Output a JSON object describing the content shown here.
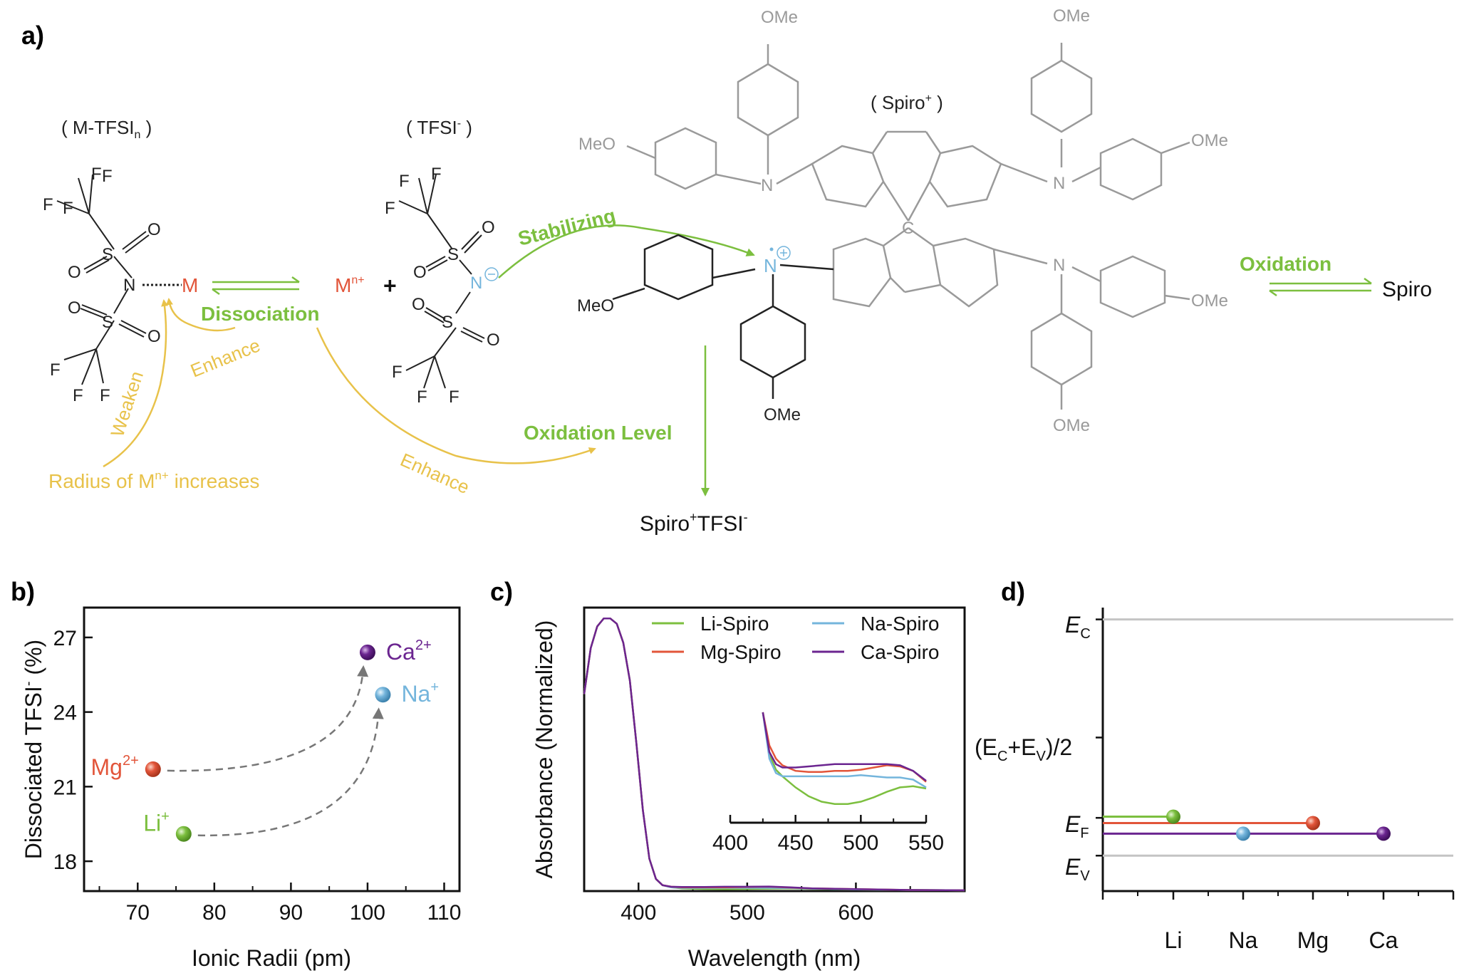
{
  "colors": {
    "green": "#7cbf3f",
    "yellow": "#e8c24a",
    "red": "#e2553a",
    "blue": "#74b5dc",
    "purple": "#6b2590",
    "grey": "#9a9a9a",
    "black": "#111111",
    "paleGrey": "#c9c9c9"
  },
  "panel_a": {
    "label": "a)",
    "m_tfsi_label": "( M-TFSI",
    "m_tfsi_sub": "n",
    "m_tfsi_close": " )",
    "tfsi_label": "( TFSI",
    "tfsi_sup": "-",
    "tfsi_close": " )",
    "spiro_plus_label": "( Spiro",
    "spiro_plus_sup": "+",
    "spiro_plus_close": " )",
    "metal": "M",
    "metal_ion": "M",
    "metal_ion_sup": "n+",
    "plus": "+",
    "dissociation": "Dissociation",
    "enhance": "Enhance",
    "weaken": "Weaken",
    "radius_text": "Radius of M",
    "radius_sup": "n+",
    "radius_tail": " increases",
    "stabilizing": "Stabilizing",
    "oxidation_level": "Oxidation Level",
    "enhance2": "Enhance",
    "oxidation": "Oxidation",
    "spiro": "Spiro",
    "product": "Spiro",
    "product_sup1": "+",
    "product_mid": "TFSI",
    "product_sup2": "-",
    "atoms": {
      "F": "F",
      "S": "S",
      "O": "O",
      "N": "N",
      "C": "C",
      "OMe": "OMe",
      "MeO": "MeO"
    }
  },
  "panel_b": {
    "label": "b)",
    "xlabel": "Ionic Radii (pm)",
    "ylabel_main": "Dissociated TFSI",
    "ylabel_sup": "-",
    "ylabel_tail": " (%)"
  },
  "panel_c": {
    "label": "c)",
    "xlabel": "Wavelength (nm)",
    "ylabel": "Absorbance (Normalized)"
  },
  "panel_d": {
    "label": "d)",
    "ec": "E",
    "ec_sub": "C",
    "mid": "(E",
    "mid_sub1": "C",
    "mid_plus": "+E",
    "mid_sub2": "V",
    "mid_tail": ")/2",
    "ef": "E",
    "ef_sub": "F",
    "ev": "E",
    "ev_sub": "V"
  },
  "chart_data": [
    {
      "type": "scatter",
      "title": "",
      "xlabel": "Ionic Radii (pm)",
      "ylabel": "Dissociated TFSI- (%)",
      "xlim": [
        63,
        112
      ],
      "ylim": [
        16.8,
        28.2
      ],
      "xticks": [
        70,
        80,
        90,
        100,
        110
      ],
      "yticks": [
        18,
        21,
        24,
        27
      ],
      "points": [
        {
          "name": "Li",
          "label": "Li",
          "sup": "+",
          "x": 76,
          "y": 19.1,
          "color": "#7cbf3f"
        },
        {
          "name": "Mg",
          "label": "Mg",
          "sup": "2+",
          "x": 72,
          "y": 21.7,
          "color": "#e2553a"
        },
        {
          "name": "Na",
          "label": "Na",
          "sup": "+",
          "x": 102,
          "y": 24.7,
          "color": "#74b5dc"
        },
        {
          "name": "Ca",
          "label": "Ca",
          "sup": "2+",
          "x": 100,
          "y": 26.4,
          "color": "#6b2590"
        }
      ],
      "arrows": [
        {
          "from": "Mg",
          "to": "Ca"
        },
        {
          "from": "Li",
          "to": "Na"
        }
      ]
    },
    {
      "type": "line",
      "title": "",
      "xlabel": "Wavelength (nm)",
      "ylabel": "Absorbance (Normalized)",
      "xlim": [
        350,
        700
      ],
      "ylim": [
        0,
        1.05
      ],
      "xticks": [
        400,
        500,
        600
      ],
      "legend_position": "top-right",
      "series": [
        {
          "name": "Li-Spiro",
          "color": "#7cbf3f",
          "x": [
            350,
            356,
            362,
            368,
            374,
            380,
            386,
            392,
            398,
            404,
            410,
            416,
            422,
            430,
            440,
            460,
            480,
            500,
            520,
            540,
            560,
            600,
            650,
            700
          ],
          "y": [
            0.73,
            0.9,
            0.98,
            1.01,
            1.01,
            0.99,
            0.92,
            0.78,
            0.55,
            0.3,
            0.12,
            0.045,
            0.022,
            0.014,
            0.01,
            0.008,
            0.007,
            0.008,
            0.009,
            0.01,
            0.008,
            0.006,
            0.004,
            0.003
          ]
        },
        {
          "name": "Na-Spiro",
          "color": "#74b5dc",
          "x": [
            350,
            356,
            362,
            368,
            374,
            380,
            386,
            392,
            398,
            404,
            410,
            416,
            422,
            430,
            440,
            460,
            480,
            500,
            520,
            540,
            560,
            600,
            650,
            700
          ],
          "y": [
            0.73,
            0.9,
            0.98,
            1.01,
            1.01,
            0.99,
            0.92,
            0.78,
            0.55,
            0.3,
            0.12,
            0.045,
            0.022,
            0.014,
            0.012,
            0.012,
            0.012,
            0.012,
            0.012,
            0.011,
            0.009,
            0.006,
            0.004,
            0.003
          ]
        },
        {
          "name": "Mg-Spiro",
          "color": "#e2553a",
          "x": [
            350,
            356,
            362,
            368,
            374,
            380,
            386,
            392,
            398,
            404,
            410,
            416,
            422,
            430,
            440,
            460,
            480,
            500,
            520,
            540,
            560,
            600,
            650,
            700
          ],
          "y": [
            0.73,
            0.9,
            0.98,
            1.01,
            1.01,
            0.99,
            0.92,
            0.78,
            0.55,
            0.3,
            0.12,
            0.045,
            0.022,
            0.016,
            0.014,
            0.014,
            0.014,
            0.015,
            0.016,
            0.013,
            0.01,
            0.007,
            0.004,
            0.003
          ]
        },
        {
          "name": "Ca-Spiro",
          "color": "#6b2590",
          "x": [
            350,
            356,
            362,
            368,
            374,
            380,
            386,
            392,
            398,
            404,
            410,
            416,
            422,
            430,
            440,
            460,
            480,
            500,
            520,
            540,
            560,
            600,
            650,
            700
          ],
          "y": [
            0.73,
            0.9,
            0.98,
            1.01,
            1.01,
            0.99,
            0.92,
            0.78,
            0.55,
            0.3,
            0.12,
            0.045,
            0.022,
            0.016,
            0.015,
            0.015,
            0.016,
            0.016,
            0.017,
            0.014,
            0.01,
            0.007,
            0.004,
            0.003
          ]
        }
      ],
      "inset": {
        "xlim": [
          400,
          550
        ],
        "xticks": [
          400,
          450,
          500,
          550
        ],
        "series": [
          {
            "name": "Li-Spiro",
            "x": [
              425,
              430,
              435,
              440,
              450,
              460,
              470,
              480,
              490,
              500,
              510,
              520,
              530,
              540,
              550
            ],
            "y": [
              1.0,
              0.62,
              0.48,
              0.42,
              0.32,
              0.24,
              0.19,
              0.17,
              0.17,
              0.19,
              0.23,
              0.28,
              0.32,
              0.33,
              0.31
            ]
          },
          {
            "name": "Na-Spiro",
            "x": [
              425,
              430,
              435,
              440,
              450,
              460,
              470,
              480,
              490,
              500,
              510,
              520,
              530,
              540,
              550
            ],
            "y": [
              1.0,
              0.58,
              0.45,
              0.42,
              0.42,
              0.42,
              0.42,
              0.42,
              0.42,
              0.43,
              0.42,
              0.41,
              0.41,
              0.39,
              0.32
            ]
          },
          {
            "name": "Mg-Spiro",
            "x": [
              425,
              430,
              435,
              440,
              450,
              460,
              470,
              480,
              490,
              500,
              510,
              520,
              530,
              540,
              550
            ],
            "y": [
              1.0,
              0.7,
              0.58,
              0.52,
              0.47,
              0.46,
              0.46,
              0.47,
              0.47,
              0.48,
              0.5,
              0.52,
              0.51,
              0.47,
              0.37
            ]
          },
          {
            "name": "Ca-Spiro",
            "x": [
              425,
              430,
              435,
              440,
              450,
              460,
              470,
              480,
              490,
              500,
              510,
              520,
              530,
              540,
              550
            ],
            "y": [
              1.0,
              0.64,
              0.53,
              0.5,
              0.5,
              0.51,
              0.52,
              0.53,
              0.53,
              0.53,
              0.53,
              0.53,
              0.52,
              0.47,
              0.38
            ]
          }
        ]
      }
    },
    {
      "type": "scatter",
      "title": "",
      "xlabel": "",
      "ylabel": "",
      "categories": [
        "Li",
        "Na",
        "Mg",
        "Ca"
      ],
      "ylim": [
        -0.15,
        1.05
      ],
      "yticks": [
        {
          "name": "EC",
          "value": 1.0
        },
        {
          "name": "(EC+EV)/2",
          "value": 0.5
        },
        {
          "name": "EF",
          "value": 0.16
        },
        {
          "name": "EV",
          "value": 0.0
        }
      ],
      "points": [
        {
          "name": "Li",
          "category": "Li",
          "y": 0.165,
          "color": "#7cbf3f"
        },
        {
          "name": "Na",
          "category": "Na",
          "y": 0.093,
          "color": "#74b5dc"
        },
        {
          "name": "Mg",
          "category": "Mg",
          "y": 0.138,
          "color": "#e2553a"
        },
        {
          "name": "Ca",
          "category": "Ca",
          "y": 0.093,
          "color": "#6b2590"
        }
      ]
    }
  ]
}
